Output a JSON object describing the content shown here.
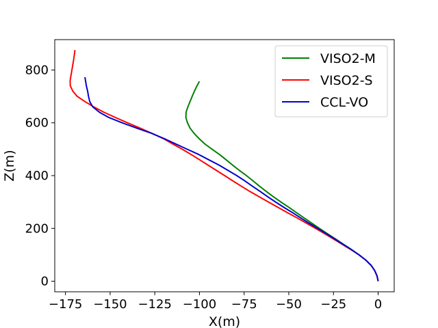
{
  "chart_data": {
    "type": "line",
    "title": "",
    "xlabel": "X(m)",
    "ylabel": "Z(m)",
    "xlim": [
      -181,
      9
    ],
    "ylim": [
      -40,
      915
    ],
    "xticks": [
      -175,
      -150,
      -125,
      -100,
      -75,
      -50,
      -25,
      0
    ],
    "xtick_labels": [
      "−175",
      "−150",
      "−125",
      "−100",
      "−75",
      "−50",
      "−25",
      "0"
    ],
    "yticks": [
      0,
      200,
      400,
      600,
      800
    ],
    "ytick_labels": [
      "0",
      "200",
      "400",
      "600",
      "800"
    ],
    "grid": false,
    "legend_position": "top-right",
    "series": [
      {
        "name": "VISO2-M",
        "color": "#008000",
        "points": [
          [
            0,
            0
          ],
          [
            -0.6,
            20
          ],
          [
            -1.9,
            40
          ],
          [
            -3.9,
            60
          ],
          [
            -6.9,
            80
          ],
          [
            -10.7,
            100
          ],
          [
            -14.9,
            120
          ],
          [
            -19.4,
            140
          ],
          [
            -23.8,
            160
          ],
          [
            -28.4,
            180
          ],
          [
            -32.8,
            200
          ],
          [
            -37.1,
            220
          ],
          [
            -41.5,
            240
          ],
          [
            -45.8,
            260
          ],
          [
            -50.0,
            280
          ],
          [
            -54.4,
            300
          ],
          [
            -58.6,
            320
          ],
          [
            -62.6,
            340
          ],
          [
            -66.4,
            360
          ],
          [
            -70.0,
            380
          ],
          [
            -73.7,
            400
          ],
          [
            -77.7,
            420
          ],
          [
            -81.5,
            440
          ],
          [
            -85.1,
            460
          ],
          [
            -88.8,
            480
          ],
          [
            -93.0,
            500
          ],
          [
            -97.0,
            520
          ],
          [
            -100.2,
            540
          ],
          [
            -103.0,
            560
          ],
          [
            -105.3,
            580
          ],
          [
            -106.7,
            600
          ],
          [
            -107.6,
            620
          ],
          [
            -107.5,
            640
          ],
          [
            -106.5,
            660
          ],
          [
            -105.3,
            680
          ],
          [
            -104.1,
            700
          ],
          [
            -102.8,
            720
          ],
          [
            -101.4,
            740
          ],
          [
            -100.0,
            757
          ]
        ]
      },
      {
        "name": "VISO2-S",
        "color": "#ff0000",
        "points": [
          [
            0,
            0
          ],
          [
            -0.6,
            20
          ],
          [
            -1.9,
            40
          ],
          [
            -3.9,
            60
          ],
          [
            -6.9,
            80
          ],
          [
            -10.7,
            100
          ],
          [
            -15.3,
            120
          ],
          [
            -20.2,
            140
          ],
          [
            -25.0,
            160
          ],
          [
            -29.9,
            180
          ],
          [
            -35.0,
            200
          ],
          [
            -40.2,
            220
          ],
          [
            -45.4,
            240
          ],
          [
            -50.8,
            260
          ],
          [
            -56.1,
            280
          ],
          [
            -61.4,
            300
          ],
          [
            -66.6,
            320
          ],
          [
            -71.8,
            340
          ],
          [
            -76.6,
            360
          ],
          [
            -81.3,
            380
          ],
          [
            -85.9,
            400
          ],
          [
            -90.6,
            420
          ],
          [
            -95.3,
            440
          ],
          [
            -99.9,
            460
          ],
          [
            -104.7,
            480
          ],
          [
            -109.6,
            500
          ],
          [
            -115.0,
            520
          ],
          [
            -120.2,
            540
          ],
          [
            -126.6,
            560
          ],
          [
            -133.3,
            580
          ],
          [
            -140.3,
            600
          ],
          [
            -147.0,
            620
          ],
          [
            -153.5,
            640
          ],
          [
            -159.1,
            660
          ],
          [
            -164.0,
            680
          ],
          [
            -168.4,
            700
          ],
          [
            -170.9,
            720
          ],
          [
            -172.3,
            740
          ],
          [
            -172.4,
            760
          ],
          [
            -171.9,
            780
          ],
          [
            -171.4,
            800
          ],
          [
            -170.9,
            820
          ],
          [
            -170.4,
            840
          ],
          [
            -170.0,
            860
          ],
          [
            -169.7,
            876
          ]
        ]
      },
      {
        "name": "CCL-VO",
        "color": "#0000cd",
        "points": [
          [
            0,
            0
          ],
          [
            -0.6,
            20
          ],
          [
            -1.9,
            40
          ],
          [
            -3.9,
            60
          ],
          [
            -6.9,
            80
          ],
          [
            -10.7,
            100
          ],
          [
            -15.0,
            120
          ],
          [
            -19.7,
            140
          ],
          [
            -24.3,
            160
          ],
          [
            -29.0,
            180
          ],
          [
            -33.8,
            200
          ],
          [
            -38.7,
            220
          ],
          [
            -43.4,
            240
          ],
          [
            -48.0,
            260
          ],
          [
            -52.8,
            280
          ],
          [
            -57.4,
            300
          ],
          [
            -61.8,
            320
          ],
          [
            -66.0,
            340
          ],
          [
            -70.4,
            360
          ],
          [
            -74.6,
            380
          ],
          [
            -79.1,
            400
          ],
          [
            -84.1,
            420
          ],
          [
            -89.1,
            440
          ],
          [
            -94.8,
            460
          ],
          [
            -100.4,
            480
          ],
          [
            -106.9,
            500
          ],
          [
            -113.3,
            520
          ],
          [
            -119.7,
            540
          ],
          [
            -126.7,
            560
          ],
          [
            -135.2,
            580
          ],
          [
            -143.3,
            600
          ],
          [
            -150.7,
            620
          ],
          [
            -156.0,
            640
          ],
          [
            -159.7,
            660
          ],
          [
            -161.4,
            680
          ],
          [
            -162.1,
            700
          ],
          [
            -162.6,
            720
          ],
          [
            -163.3,
            740
          ],
          [
            -163.8,
            760
          ],
          [
            -164.1,
            773
          ]
        ]
      }
    ]
  }
}
